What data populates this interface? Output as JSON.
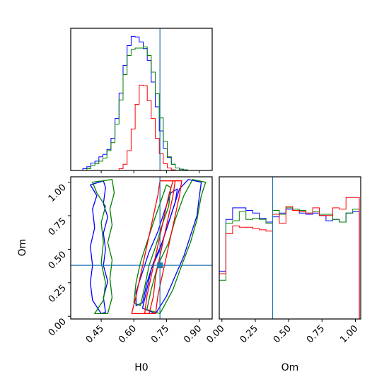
{
  "chart_data": {
    "type": "corner",
    "parameters": [
      "H0",
      "Om"
    ],
    "truth": {
      "H0": 0.72,
      "Om": 0.38
    },
    "truth_color": "#1f77b4",
    "series": [
      {
        "color": "#0000ff"
      },
      {
        "color": "#008000"
      },
      {
        "color": "#ff0000"
      }
    ],
    "ranges": {
      "H0": [
        0.31,
        0.96
      ],
      "Om": [
        -0.02,
        1.04
      ]
    },
    "x_ticks": {
      "H0": [
        "0.45",
        "0.60",
        "0.75",
        "0.90"
      ],
      "Om": [
        "0.00",
        "0.25",
        "0.50",
        "0.75",
        "1.00"
      ]
    },
    "y_ticks": {
      "Om": [
        "0.00",
        "0.25",
        "0.50",
        "0.75",
        "1.00"
      ]
    },
    "xlabels": {
      "H0": "H0",
      "Om": "Om"
    },
    "ylabels": {
      "Om": "Om"
    },
    "hist_H0": {
      "bin_start": 0.31,
      "bin_width": 0.0185,
      "counts": {
        "#0000ff": [
          0,
          0,
          0,
          0.3,
          0.6,
          1.2,
          1.5,
          2.2,
          2.6,
          3.4,
          5.2,
          8.4,
          12.5,
          17,
          20.2,
          21.7,
          21.6,
          20.8,
          19.7,
          17.8,
          14.3,
          10.3,
          6.4,
          3.6,
          2.1,
          1.0,
          0.4,
          0.2,
          0.1,
          0,
          0,
          0,
          0,
          0,
          0
        ],
        "#008000": [
          0,
          0,
          0,
          0,
          0.3,
          0.8,
          1.1,
          1.5,
          2.0,
          3.2,
          4.5,
          7.5,
          11.4,
          15.5,
          18.6,
          19.6,
          19.8,
          19.8,
          20.0,
          18.6,
          15.9,
          12.4,
          8.5,
          4.7,
          2.2,
          1.0,
          0.4,
          0.2,
          0.1,
          0,
          0,
          0,
          0,
          0,
          0
        ],
        "#ff0000": [
          0,
          0,
          0,
          0,
          0,
          0,
          0,
          0,
          0,
          0,
          0,
          0,
          0.3,
          1.0,
          3.2,
          6.7,
          10.7,
          13.8,
          13.7,
          11.3,
          8.4,
          5.2,
          2.7,
          1.1,
          0.4,
          0.1,
          0,
          0,
          0,
          0,
          0,
          0,
          0,
          0,
          0
        ]
      }
    },
    "hist_Om": {
      "bin_start": -0.02,
      "bin_width": 0.05,
      "counts": {
        "#0000ff": [
          3.7,
          7.7,
          8.6,
          8.6,
          8.4,
          8.2,
          7.8,
          7.5,
          7.9,
          8.2,
          8.5,
          8.4,
          8.2,
          8.1,
          8.2,
          8.0,
          7.6,
          7.7,
          7.5,
          8.2,
          8.3
        ],
        "#008000": [
          3.0,
          7.4,
          7.6,
          8.3,
          7.7,
          7.8,
          7.7,
          7.4,
          8.4,
          8.1,
          8.6,
          8.5,
          8.4,
          8.2,
          8.3,
          8.1,
          8.1,
          7.7,
          7.5,
          8.2,
          8.5
        ],
        "#ff0000": [
          3.5,
          6.6,
          7.2,
          7.1,
          7.1,
          7.0,
          6.9,
          6.8,
          8.1,
          7.4,
          8.7,
          8.4,
          8.3,
          8.2,
          8.6,
          8.0,
          8.0,
          8.6,
          8.5,
          9.4,
          9.4
        ]
      }
    },
    "contours": [
      {
        "color": "#0000ff",
        "levels": [
          [
            [
              0.45,
              0.02
            ],
            [
              0.41,
              0.12
            ],
            [
              0.4,
              0.25
            ],
            [
              0.41,
              0.38
            ],
            [
              0.4,
              0.52
            ],
            [
              0.42,
              0.66
            ],
            [
              0.41,
              0.8
            ],
            [
              0.43,
              0.9
            ],
            [
              0.4,
              0.98
            ],
            [
              0.46,
              1.01
            ],
            [
              0.47,
              0.96
            ],
            [
              0.46,
              0.84
            ],
            [
              0.48,
              0.74
            ],
            [
              0.46,
              0.62
            ],
            [
              0.47,
              0.5
            ],
            [
              0.46,
              0.38
            ],
            [
              0.48,
              0.26
            ],
            [
              0.46,
              0.14
            ],
            [
              0.47,
              0.03
            ]
          ],
          [
            [
              0.7,
              0.02
            ],
            [
              0.75,
              0.15
            ],
            [
              0.79,
              0.3
            ],
            [
              0.83,
              0.45
            ],
            [
              0.86,
              0.6
            ],
            [
              0.89,
              0.75
            ],
            [
              0.9,
              0.88
            ],
            [
              0.91,
              1.0
            ],
            [
              0.85,
              1.02
            ],
            [
              0.81,
              0.95
            ],
            [
              0.78,
              0.8
            ],
            [
              0.75,
              0.65
            ],
            [
              0.72,
              0.5
            ],
            [
              0.68,
              0.35
            ],
            [
              0.66,
              0.2
            ],
            [
              0.64,
              0.06
            ]
          ],
          [
            [
              0.64,
              0.1
            ],
            [
              0.66,
              0.25
            ],
            [
              0.69,
              0.4
            ],
            [
              0.73,
              0.55
            ],
            [
              0.76,
              0.7
            ],
            [
              0.79,
              0.85
            ],
            [
              0.8,
              0.95
            ],
            [
              0.77,
              0.92
            ],
            [
              0.74,
              0.78
            ],
            [
              0.71,
              0.63
            ],
            [
              0.67,
              0.48
            ],
            [
              0.64,
              0.33
            ],
            [
              0.61,
              0.18
            ],
            [
              0.61,
              0.08
            ]
          ]
        ]
      },
      {
        "color": "#008000",
        "levels": [
          [
            [
              0.42,
              0.02
            ],
            [
              0.46,
              0.12
            ],
            [
              0.47,
              0.25
            ],
            [
              0.45,
              0.4
            ],
            [
              0.46,
              0.55
            ],
            [
              0.45,
              0.7
            ],
            [
              0.47,
              0.82
            ],
            [
              0.43,
              0.92
            ],
            [
              0.41,
              1.0
            ],
            [
              0.5,
              1.02
            ],
            [
              0.51,
              0.92
            ],
            [
              0.49,
              0.8
            ],
            [
              0.5,
              0.68
            ],
            [
              0.48,
              0.55
            ],
            [
              0.5,
              0.42
            ],
            [
              0.49,
              0.28
            ],
            [
              0.5,
              0.14
            ],
            [
              0.48,
              0.02
            ]
          ],
          [
            [
              0.72,
              0.02
            ],
            [
              0.78,
              0.2
            ],
            [
              0.82,
              0.38
            ],
            [
              0.86,
              0.55
            ],
            [
              0.89,
              0.72
            ],
            [
              0.91,
              0.9
            ],
            [
              0.93,
              1.0
            ],
            [
              0.87,
              1.02
            ],
            [
              0.83,
              0.9
            ],
            [
              0.79,
              0.72
            ],
            [
              0.76,
              0.55
            ],
            [
              0.71,
              0.38
            ],
            [
              0.68,
              0.2
            ],
            [
              0.66,
              0.05
            ]
          ],
          [
            [
              0.63,
              0.08
            ],
            [
              0.65,
              0.22
            ],
            [
              0.67,
              0.38
            ],
            [
              0.7,
              0.52
            ],
            [
              0.73,
              0.68
            ],
            [
              0.76,
              0.82
            ],
            [
              0.77,
              0.96
            ],
            [
              0.75,
              0.98
            ],
            [
              0.72,
              0.84
            ],
            [
              0.69,
              0.7
            ],
            [
              0.66,
              0.55
            ],
            [
              0.63,
              0.4
            ],
            [
              0.61,
              0.25
            ],
            [
              0.6,
              0.1
            ]
          ]
        ]
      },
      {
        "color": "#ff0000",
        "levels": [
          [
            [
              0.59,
              0.02
            ],
            [
              0.61,
              0.15
            ],
            [
              0.63,
              0.3
            ],
            [
              0.65,
              0.45
            ],
            [
              0.67,
              0.6
            ],
            [
              0.69,
              0.75
            ],
            [
              0.71,
              0.9
            ],
            [
              0.72,
              1.01
            ],
            [
              0.79,
              1.01
            ],
            [
              0.78,
              0.9
            ],
            [
              0.76,
              0.75
            ],
            [
              0.74,
              0.6
            ],
            [
              0.72,
              0.45
            ],
            [
              0.7,
              0.3
            ],
            [
              0.69,
              0.15
            ],
            [
              0.67,
              0.02
            ]
          ],
          [
            [
              0.65,
              0.02
            ],
            [
              0.66,
              0.15
            ],
            [
              0.68,
              0.3
            ],
            [
              0.7,
              0.45
            ],
            [
              0.72,
              0.6
            ],
            [
              0.74,
              0.75
            ],
            [
              0.76,
              0.9
            ],
            [
              0.78,
              1.01
            ],
            [
              0.82,
              1.01
            ],
            [
              0.81,
              0.9
            ],
            [
              0.79,
              0.75
            ],
            [
              0.77,
              0.6
            ],
            [
              0.75,
              0.45
            ],
            [
              0.73,
              0.3
            ],
            [
              0.71,
              0.15
            ],
            [
              0.7,
              0.02
            ]
          ]
        ]
      }
    ]
  }
}
